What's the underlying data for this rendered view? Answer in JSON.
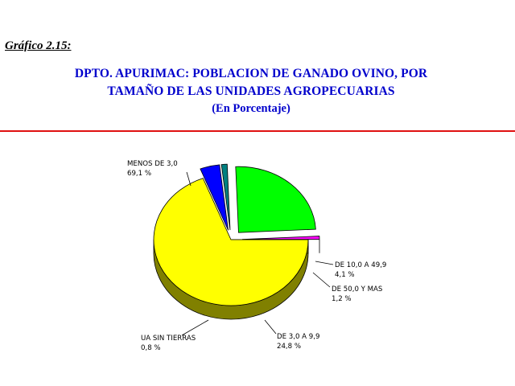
{
  "figure_label": "Gráfico 2.15:",
  "title_lines": [
    "DPTO. APURIMAC: POBLACION DE GANADO OVINO, POR",
    "TAMAÑO DE LAS UNIDADES AGROPECUARIAS"
  ],
  "subtitle": "(En Porcentaje)",
  "chart_data": {
    "type": "pie",
    "title": "DPTO. APURIMAC: POBLACION DE GANADO OVINO, POR TAMAÑO DE LAS UNIDADES AGROPECUARIAS",
    "subtitle": "(En Porcentaje)",
    "unit": "%",
    "three_d": true,
    "slices": [
      {
        "label": "MENOS DE 3,0",
        "value_label": "69,1 %",
        "value": 69.1,
        "color": "#ffff00",
        "side_color": "#808000",
        "exploded": false
      },
      {
        "label": "DE 10,0 A 49,9",
        "value_label": "4,1 %",
        "value": 4.1,
        "color": "#0000ff",
        "side_color": "#000080",
        "exploded": true
      },
      {
        "label": "DE 50,0 Y MAS",
        "value_label": "1,2 %",
        "value": 1.2,
        "color": "#008080",
        "side_color": "#004040",
        "exploded": true
      },
      {
        "label": "DE 3,0 A 9,9",
        "value_label": "24,8 %",
        "value": 24.8,
        "color": "#00ff00",
        "side_color": "#008000",
        "exploded": true
      },
      {
        "label": "UA SIN TIERRAS",
        "value_label": "0,8 %",
        "value": 0.8,
        "color": "#ff00ff",
        "side_color": "#800080",
        "exploded": true
      }
    ]
  }
}
